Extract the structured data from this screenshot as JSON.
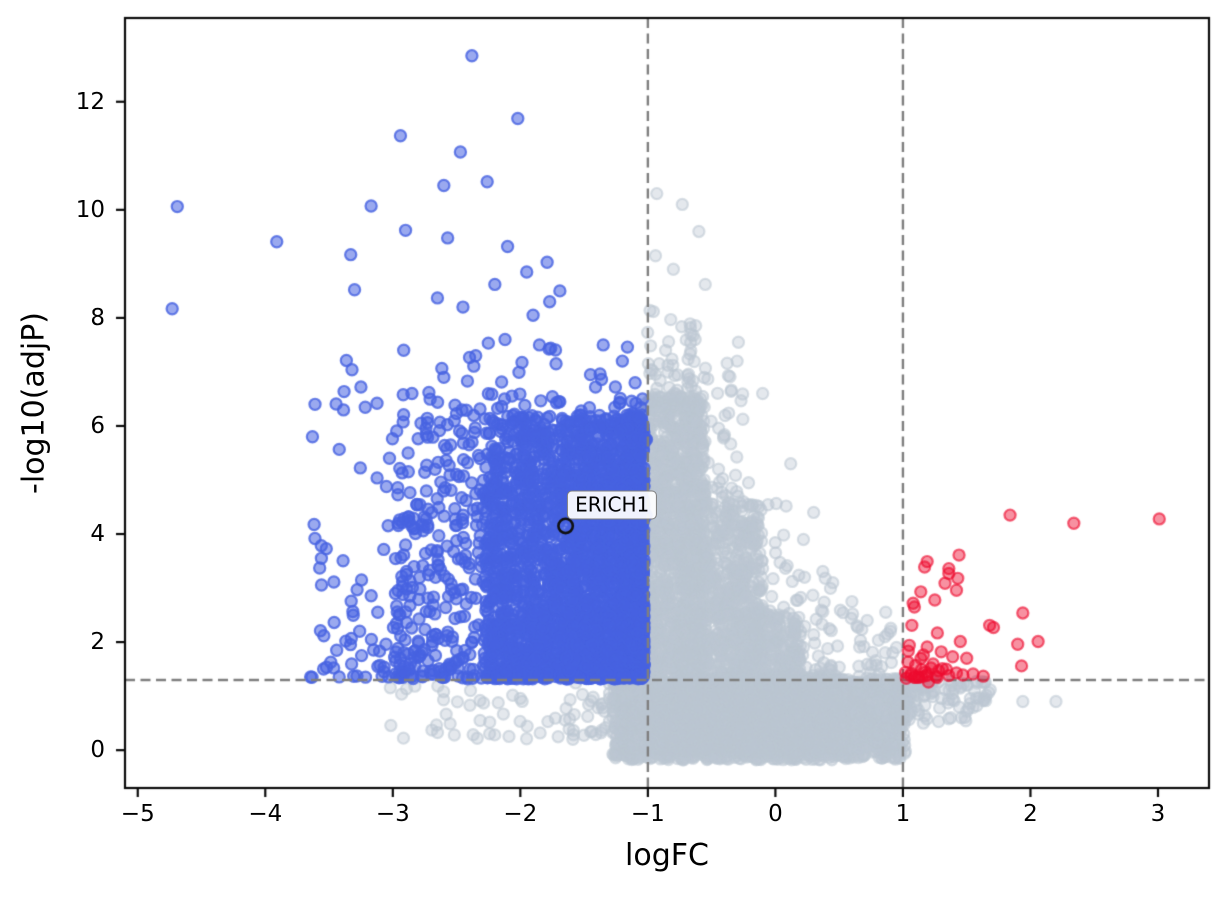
{
  "chart_data": {
    "type": "scatter",
    "title": "",
    "xlabel": "logFC",
    "ylabel": "-log10(adjP)",
    "xlim": [
      -5.1,
      3.4
    ],
    "ylim": [
      -0.7,
      13.55
    ],
    "grid": false,
    "legend": null,
    "x_ticks": [
      -5,
      -4,
      -3,
      -2,
      -1,
      0,
      1,
      2,
      3
    ],
    "x_tick_labels": [
      "−5",
      "−4",
      "−3",
      "−2",
      "−1",
      "0",
      "1",
      "2",
      "3"
    ],
    "y_ticks": [
      0,
      2,
      4,
      6,
      8,
      10,
      12
    ],
    "y_tick_labels": [
      "0",
      "2",
      "4",
      "6",
      "8",
      "10",
      "12"
    ],
    "threshold_lines": {
      "style": "dashed",
      "color": "#7f7f7f",
      "vertical_logFC": [
        -1,
        1
      ],
      "horizontal_neglog10_adjP": 1.3
    },
    "annotations": [
      {
        "text": "ERICH1",
        "point": [
          -1.645,
          4.15
        ],
        "label_center": [
          -1.28,
          4.54
        ]
      }
    ],
    "series": [
      {
        "name": "not-significant",
        "color": "#BBC6D2",
        "fill_alpha": 0.4,
        "edge_alpha": 0.55,
        "clusters": [
          {
            "n": 1500,
            "xa": -1.02,
            "xs": 0.47,
            "xp": 1.0,
            "ya": -0.05,
            "ys": 6.6,
            "yp": 1.15
          },
          {
            "n": 1100,
            "xa": -0.75,
            "xs": 0.65,
            "xp": 1.0,
            "ya": -0.05,
            "ys": 4.6,
            "yp": 1.3
          },
          {
            "n": 800,
            "xa": -0.35,
            "xs": 0.55,
            "xp": 1.0,
            "ya": -0.05,
            "ys": 2.6,
            "yp": 1.5
          },
          {
            "n": 500,
            "xa": 0.0,
            "xs": 0.5,
            "xp": 1.0,
            "ya": -0.05,
            "ys": 1.45,
            "yp": 1.3
          },
          {
            "n": 2400,
            "xa": -1.28,
            "xs": 2.3,
            "xp": 1.0,
            "ya": -0.18,
            "ys": 1.5,
            "yp": 1.0
          },
          {
            "n": 120,
            "xa": 0.95,
            "xs": 0.75,
            "xp": 1.6,
            "ya": 1.28,
            "ys": -0.75,
            "yp": 1.3
          },
          {
            "n": 70,
            "xa": -1.3,
            "xs": -1.75,
            "xp": 1.5,
            "ya": 1.25,
            "ys": -1.05,
            "yp": 1.2
          },
          {
            "n": 90,
            "xa": -1.02,
            "xs": 0.42,
            "xp": 1.0,
            "ya": 6.3,
            "ys": 1.9,
            "yp": 2.2
          },
          {
            "n": 70,
            "xa": -0.85,
            "xs": 0.6,
            "xp": 1.0,
            "ya": 4.5,
            "ys": 2.7,
            "yp": 2.2
          },
          {
            "n": 60,
            "xa": -0.5,
            "xs": 0.6,
            "xp": 1.0,
            "ya": 2.5,
            "ys": 2.5,
            "yp": 2.0
          },
          {
            "n": 40,
            "xa": -0.1,
            "xs": 0.55,
            "xp": 1.0,
            "ya": 1.4,
            "ys": 2.0,
            "yp": 1.8
          },
          {
            "n": 45,
            "xa": 0.3,
            "xs": 0.65,
            "xp": 1.0,
            "ya": 1.3,
            "ys": 1.3,
            "yp": 1.6
          }
        ],
        "points": [
          [
            -0.93,
            10.3
          ],
          [
            -0.73,
            10.1
          ],
          [
            -0.6,
            9.6
          ],
          [
            -0.94,
            9.15
          ],
          [
            -0.8,
            8.9
          ],
          [
            -0.55,
            8.62
          ],
          [
            -0.29,
            7.55
          ],
          [
            -0.3,
            7.2
          ],
          [
            -0.1,
            6.6
          ],
          [
            0.12,
            5.3
          ],
          [
            0.3,
            4.4
          ],
          [
            0.22,
            3.9
          ],
          [
            0.45,
            3.1
          ],
          [
            0.6,
            2.75
          ],
          [
            0.72,
            2.4
          ],
          [
            0.88,
            2.15
          ],
          [
            0.95,
            1.9
          ],
          [
            1.94,
            0.9
          ],
          [
            2.2,
            0.9
          ],
          [
            1.5,
            0.72
          ],
          [
            1.33,
            1.12
          ],
          [
            1.16,
            0.5
          ],
          [
            1.45,
            1.15
          ]
        ]
      },
      {
        "name": "down-regulated",
        "color": "#4763E1",
        "fill_alpha": 0.55,
        "edge_alpha": 0.8,
        "clusters": [
          {
            "n": 2300,
            "xa": -1.03,
            "xs": -1.25,
            "xp": 1.45,
            "ya": 1.32,
            "ys": 4.9,
            "yp": 1.3
          },
          {
            "n": 650,
            "xa": -1.03,
            "xs": -1.95,
            "xp": 1.15,
            "ya": 1.32,
            "ys": 5.3,
            "yp": 1.75
          },
          {
            "n": 260,
            "xa": -1.0,
            "xs": -2.65,
            "xp": 1.25,
            "ya": 1.35,
            "ys": 6.2,
            "yp": 2.1
          }
        ],
        "points": [
          [
            -2.38,
            12.85
          ],
          [
            -2.02,
            11.69
          ],
          [
            -2.94,
            11.37
          ],
          [
            -2.47,
            11.07
          ],
          [
            -2.26,
            10.52
          ],
          [
            -2.6,
            10.45
          ],
          [
            -3.17,
            10.07
          ],
          [
            -4.69,
            10.06
          ],
          [
            -3.91,
            9.41
          ],
          [
            -2.9,
            9.62
          ],
          [
            -2.57,
            9.48
          ],
          [
            -3.33,
            9.17
          ],
          [
            -2.1,
            9.32
          ],
          [
            -1.79,
            9.03
          ],
          [
            -1.95,
            8.85
          ],
          [
            -2.2,
            8.62
          ],
          [
            -3.3,
            8.52
          ],
          [
            -1.69,
            8.5
          ],
          [
            -2.65,
            8.37
          ],
          [
            -2.45,
            8.2
          ],
          [
            -1.77,
            8.3
          ],
          [
            -4.73,
            8.17
          ],
          [
            -1.9,
            8.05
          ],
          [
            -2.12,
            7.6
          ],
          [
            -2.35,
            7.3
          ],
          [
            -1.85,
            7.5
          ],
          [
            -2.6,
            6.9
          ],
          [
            -2.85,
            6.6
          ],
          [
            -1.72,
            7.15
          ],
          [
            -3.32,
            7.04
          ],
          [
            -3.61,
            6.4
          ],
          [
            -3.25,
            6.72
          ],
          [
            -1.35,
            7.5
          ],
          [
            -1.2,
            7.2
          ],
          [
            -1.45,
            6.95
          ],
          [
            -1.1,
            6.8
          ],
          [
            -3.56,
            3.55
          ],
          [
            -3.28,
            2.97
          ],
          [
            -3.26,
            2.2
          ],
          [
            -3.44,
            1.85
          ],
          [
            -3.1,
            1.57
          ],
          [
            -2.92,
            1.42
          ],
          [
            -2.95,
            2.5
          ],
          [
            -3.05,
            4.88
          ],
          [
            -2.88,
            5.5
          ]
        ]
      },
      {
        "name": "up-regulated",
        "color": "#ED0C2F",
        "fill_alpha": 0.45,
        "edge_alpha": 0.62,
        "clusters": [
          {
            "n": 14,
            "xa": 1.02,
            "xs": 0.33,
            "xp": 1.2,
            "ya": 1.33,
            "ys": 0.55,
            "yp": 1.5
          }
        ],
        "points": [
          [
            1.84,
            4.35
          ],
          [
            2.34,
            4.2
          ],
          [
            3.01,
            4.28
          ],
          [
            1.44,
            3.61
          ],
          [
            1.19,
            3.49
          ],
          [
            1.17,
            3.39
          ],
          [
            1.36,
            3.36
          ],
          [
            1.36,
            3.27
          ],
          [
            1.43,
            3.18
          ],
          [
            1.33,
            3.09
          ],
          [
            1.42,
            2.96
          ],
          [
            1.14,
            2.93
          ],
          [
            1.25,
            2.78
          ],
          [
            1.08,
            2.72
          ],
          [
            1.09,
            2.65
          ],
          [
            1.94,
            2.54
          ],
          [
            1.07,
            2.31
          ],
          [
            1.68,
            2.31
          ],
          [
            1.71,
            2.27
          ],
          [
            1.27,
            2.17
          ],
          [
            2.06,
            2.01
          ],
          [
            1.9,
            1.96
          ],
          [
            1.45,
            2.01
          ],
          [
            1.05,
            1.94
          ],
          [
            1.19,
            1.91
          ],
          [
            1.3,
            1.82
          ],
          [
            1.16,
            1.76
          ],
          [
            1.39,
            1.73
          ],
          [
            1.5,
            1.7
          ],
          [
            1.93,
            1.56
          ],
          [
            1.04,
            1.63
          ],
          [
            1.1,
            1.57
          ],
          [
            1.22,
            1.52
          ],
          [
            1.28,
            1.47
          ],
          [
            1.34,
            1.5
          ],
          [
            1.42,
            1.43
          ],
          [
            1.02,
            1.44
          ],
          [
            1.06,
            1.38
          ],
          [
            1.12,
            1.35
          ],
          [
            1.19,
            1.4
          ],
          [
            1.26,
            1.37
          ],
          [
            1.36,
            1.38
          ],
          [
            1.47,
            1.39
          ],
          [
            1.55,
            1.41
          ],
          [
            1.63,
            1.37
          ],
          [
            1.2,
            1.26
          ]
        ]
      }
    ],
    "colors": {
      "background": "#ffffff",
      "spine": "#0a0a0a",
      "tick_text": "#000000",
      "dashed_line": "#7f7f7f",
      "annotation_marker": "#111111"
    }
  }
}
